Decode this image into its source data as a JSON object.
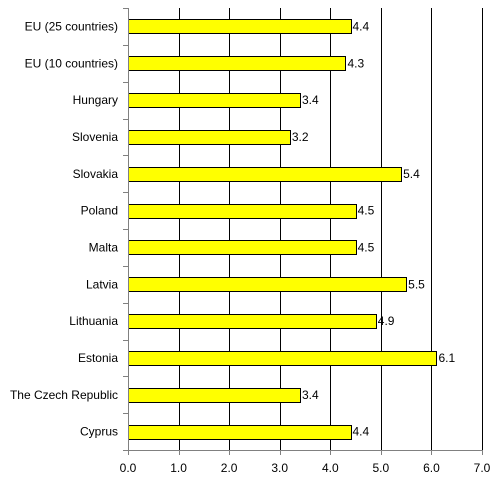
{
  "chart_data": {
    "type": "bar",
    "orientation": "horizontal",
    "title": "",
    "xlabel": "",
    "ylabel": "",
    "categories": [
      "EU (25 countries)",
      "EU (10 countries)",
      "Hungary",
      "Slovenia",
      "Slovakia",
      "Poland",
      "Malta",
      "Latvia",
      "Lithuania",
      "Estonia",
      "The Czech Republic",
      "Cyprus"
    ],
    "values": [
      4.4,
      4.3,
      3.4,
      3.2,
      5.4,
      4.5,
      4.5,
      5.5,
      4.9,
      6.1,
      3.4,
      4.4
    ],
    "value_labels": [
      "4.4",
      "4.3",
      "3.4",
      "3.2",
      "5.4",
      "4.5",
      "4.5",
      "5.5",
      "4.9",
      "6.1",
      "3.4",
      "4.4"
    ],
    "xlim": [
      0,
      7
    ],
    "x_ticks": [
      "0.0",
      "1.0",
      "2.0",
      "3.0",
      "4.0",
      "5.0",
      "6.0",
      "7.0"
    ],
    "grid": "vertical",
    "bar_color": "#ffff00",
    "bar_border_color": "#000000",
    "legend": "none"
  }
}
